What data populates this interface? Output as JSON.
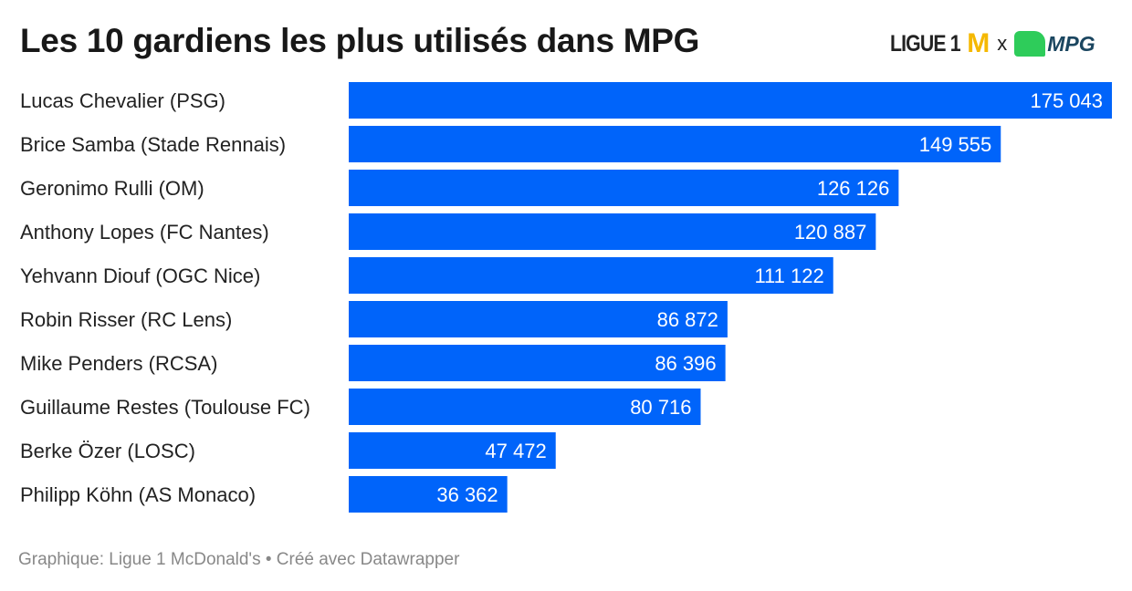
{
  "title": "Les 10 gardiens les plus utilisés dans MPG",
  "logo": {
    "ligue": "LIGUE 1",
    "mcd": "M",
    "x": "x",
    "mpg": "MPG"
  },
  "footer": "Graphique: Ligue 1 McDonald's • Créé avec Datawrapper",
  "colors": {
    "bar": "#0064fa",
    "label": "#222222",
    "value": "#ffffff"
  },
  "chart_data": {
    "type": "bar",
    "orientation": "horizontal",
    "title": "Les 10 gardiens les plus utilisés dans MPG",
    "categories": [
      "Lucas Chevalier (PSG)",
      "Brice Samba (Stade Rennais)",
      "Geronimo Rulli (OM)",
      "Anthony Lopes (FC Nantes)",
      "Yehvann Diouf (OGC Nice)",
      "Robin Risser (RC Lens)",
      "Mike Penders (RCSA)",
      "Guillaume Restes (Toulouse FC)",
      "Berke Özer (LOSC)",
      "Philipp Köhn (AS Monaco)"
    ],
    "values": [
      175043,
      149555,
      126126,
      120887,
      111122,
      86872,
      86396,
      80716,
      47472,
      36362
    ],
    "value_labels": [
      "175 043",
      "149 555",
      "126 126",
      "120 887",
      "111 122",
      "86 872",
      "86 396",
      "80 716",
      "47 472",
      "36 362"
    ],
    "xlim": [
      0,
      175043
    ]
  }
}
